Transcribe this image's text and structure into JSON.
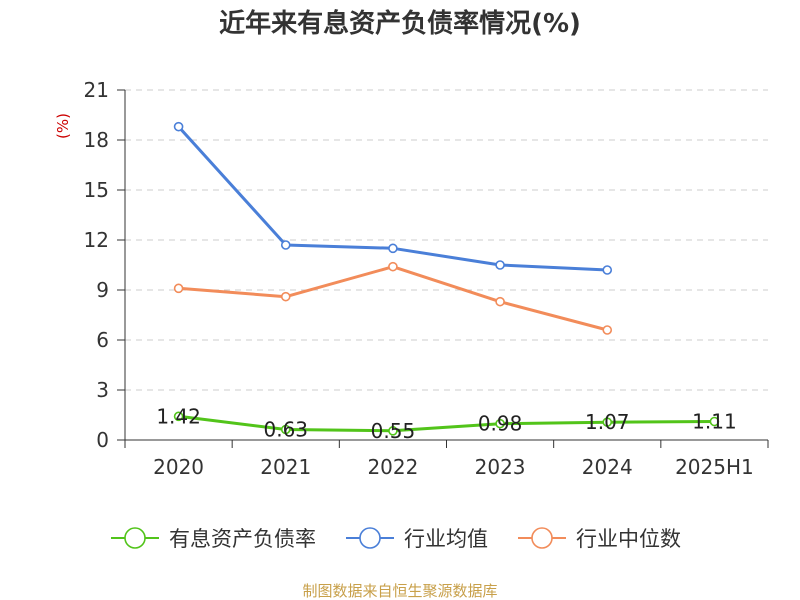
{
  "chart_data": {
    "type": "line",
    "title": "近年来有息资产负债率情况(%)",
    "ylabel": "(%)",
    "categories": [
      "2020",
      "2021",
      "2022",
      "2023",
      "2024",
      "2025H1"
    ],
    "yticks": [
      "0",
      "3",
      "6",
      "9",
      "12",
      "15",
      "18",
      "21"
    ],
    "ylim": [
      0,
      21
    ],
    "grid": true,
    "legend_position": "bottom",
    "series": [
      {
        "name": "有息资产负债率",
        "color": "#52c41a",
        "values": [
          1.42,
          0.63,
          0.55,
          0.98,
          1.07,
          1.11
        ],
        "labels": [
          "1.42",
          "0.63",
          "0.55",
          "0.98",
          "1.07",
          "1.11"
        ]
      },
      {
        "name": "行业均值",
        "color": "#4a7fd8",
        "values": [
          18.8,
          11.7,
          11.5,
          10.5,
          10.2,
          null
        ]
      },
      {
        "name": "行业中位数",
        "color": "#f28c5a",
        "values": [
          9.1,
          8.6,
          10.4,
          8.3,
          6.6,
          null
        ]
      }
    ]
  },
  "source": "制图数据来自恒生聚源数据库",
  "colors": {
    "axis": "#333333",
    "grid": "#cccccc",
    "unit": "#cc0000",
    "source": "#c8a04a"
  }
}
